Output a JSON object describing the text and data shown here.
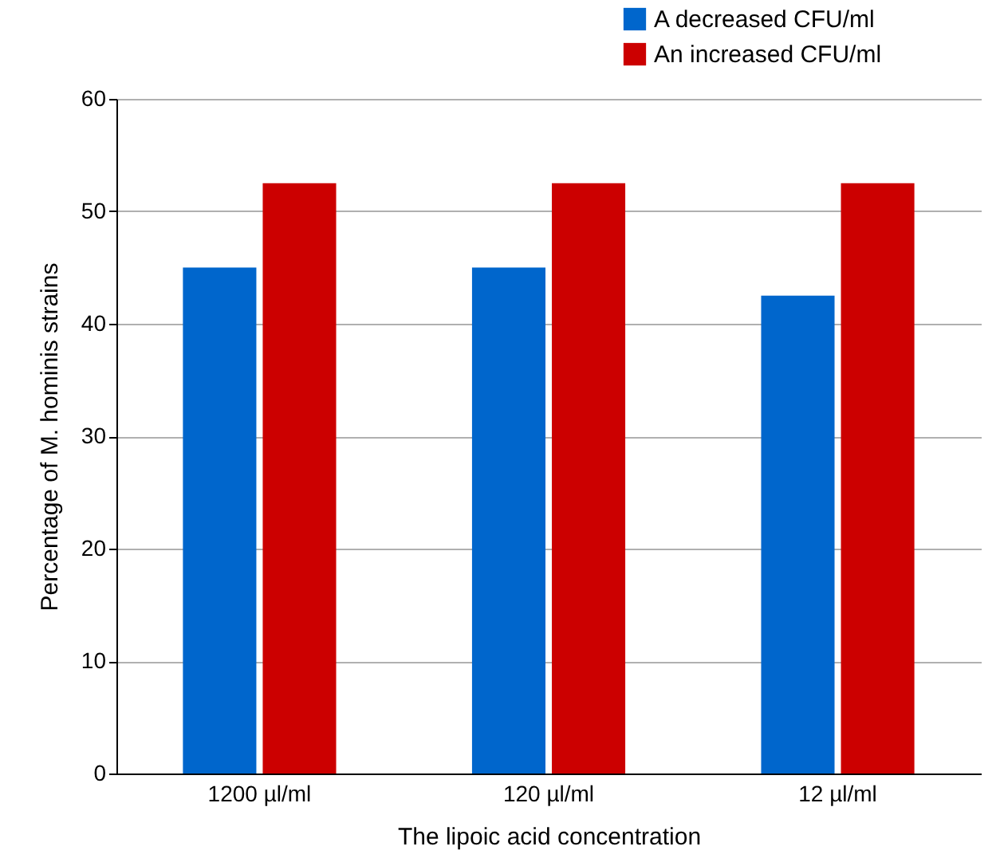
{
  "chart_data": {
    "type": "bar",
    "xlabel": "The lipoic acid concentration",
    "ylabel": "Percentage of M. hominis strains",
    "categories": [
      "1200 µl/ml",
      "120 µl/ml",
      "12 µl/ml"
    ],
    "series": [
      {
        "name": "A decreased CFU/ml",
        "color": "#0066cc",
        "values": [
          45,
          45,
          42.5
        ]
      },
      {
        "name": "An increased CFU/ml",
        "color": "#cc0000",
        "values": [
          52.5,
          52.5,
          52.5
        ]
      }
    ],
    "ylim": [
      0,
      60
    ],
    "yticks": [
      0,
      10,
      20,
      30,
      40,
      50,
      60
    ],
    "grid": "y",
    "legend": "top right"
  }
}
